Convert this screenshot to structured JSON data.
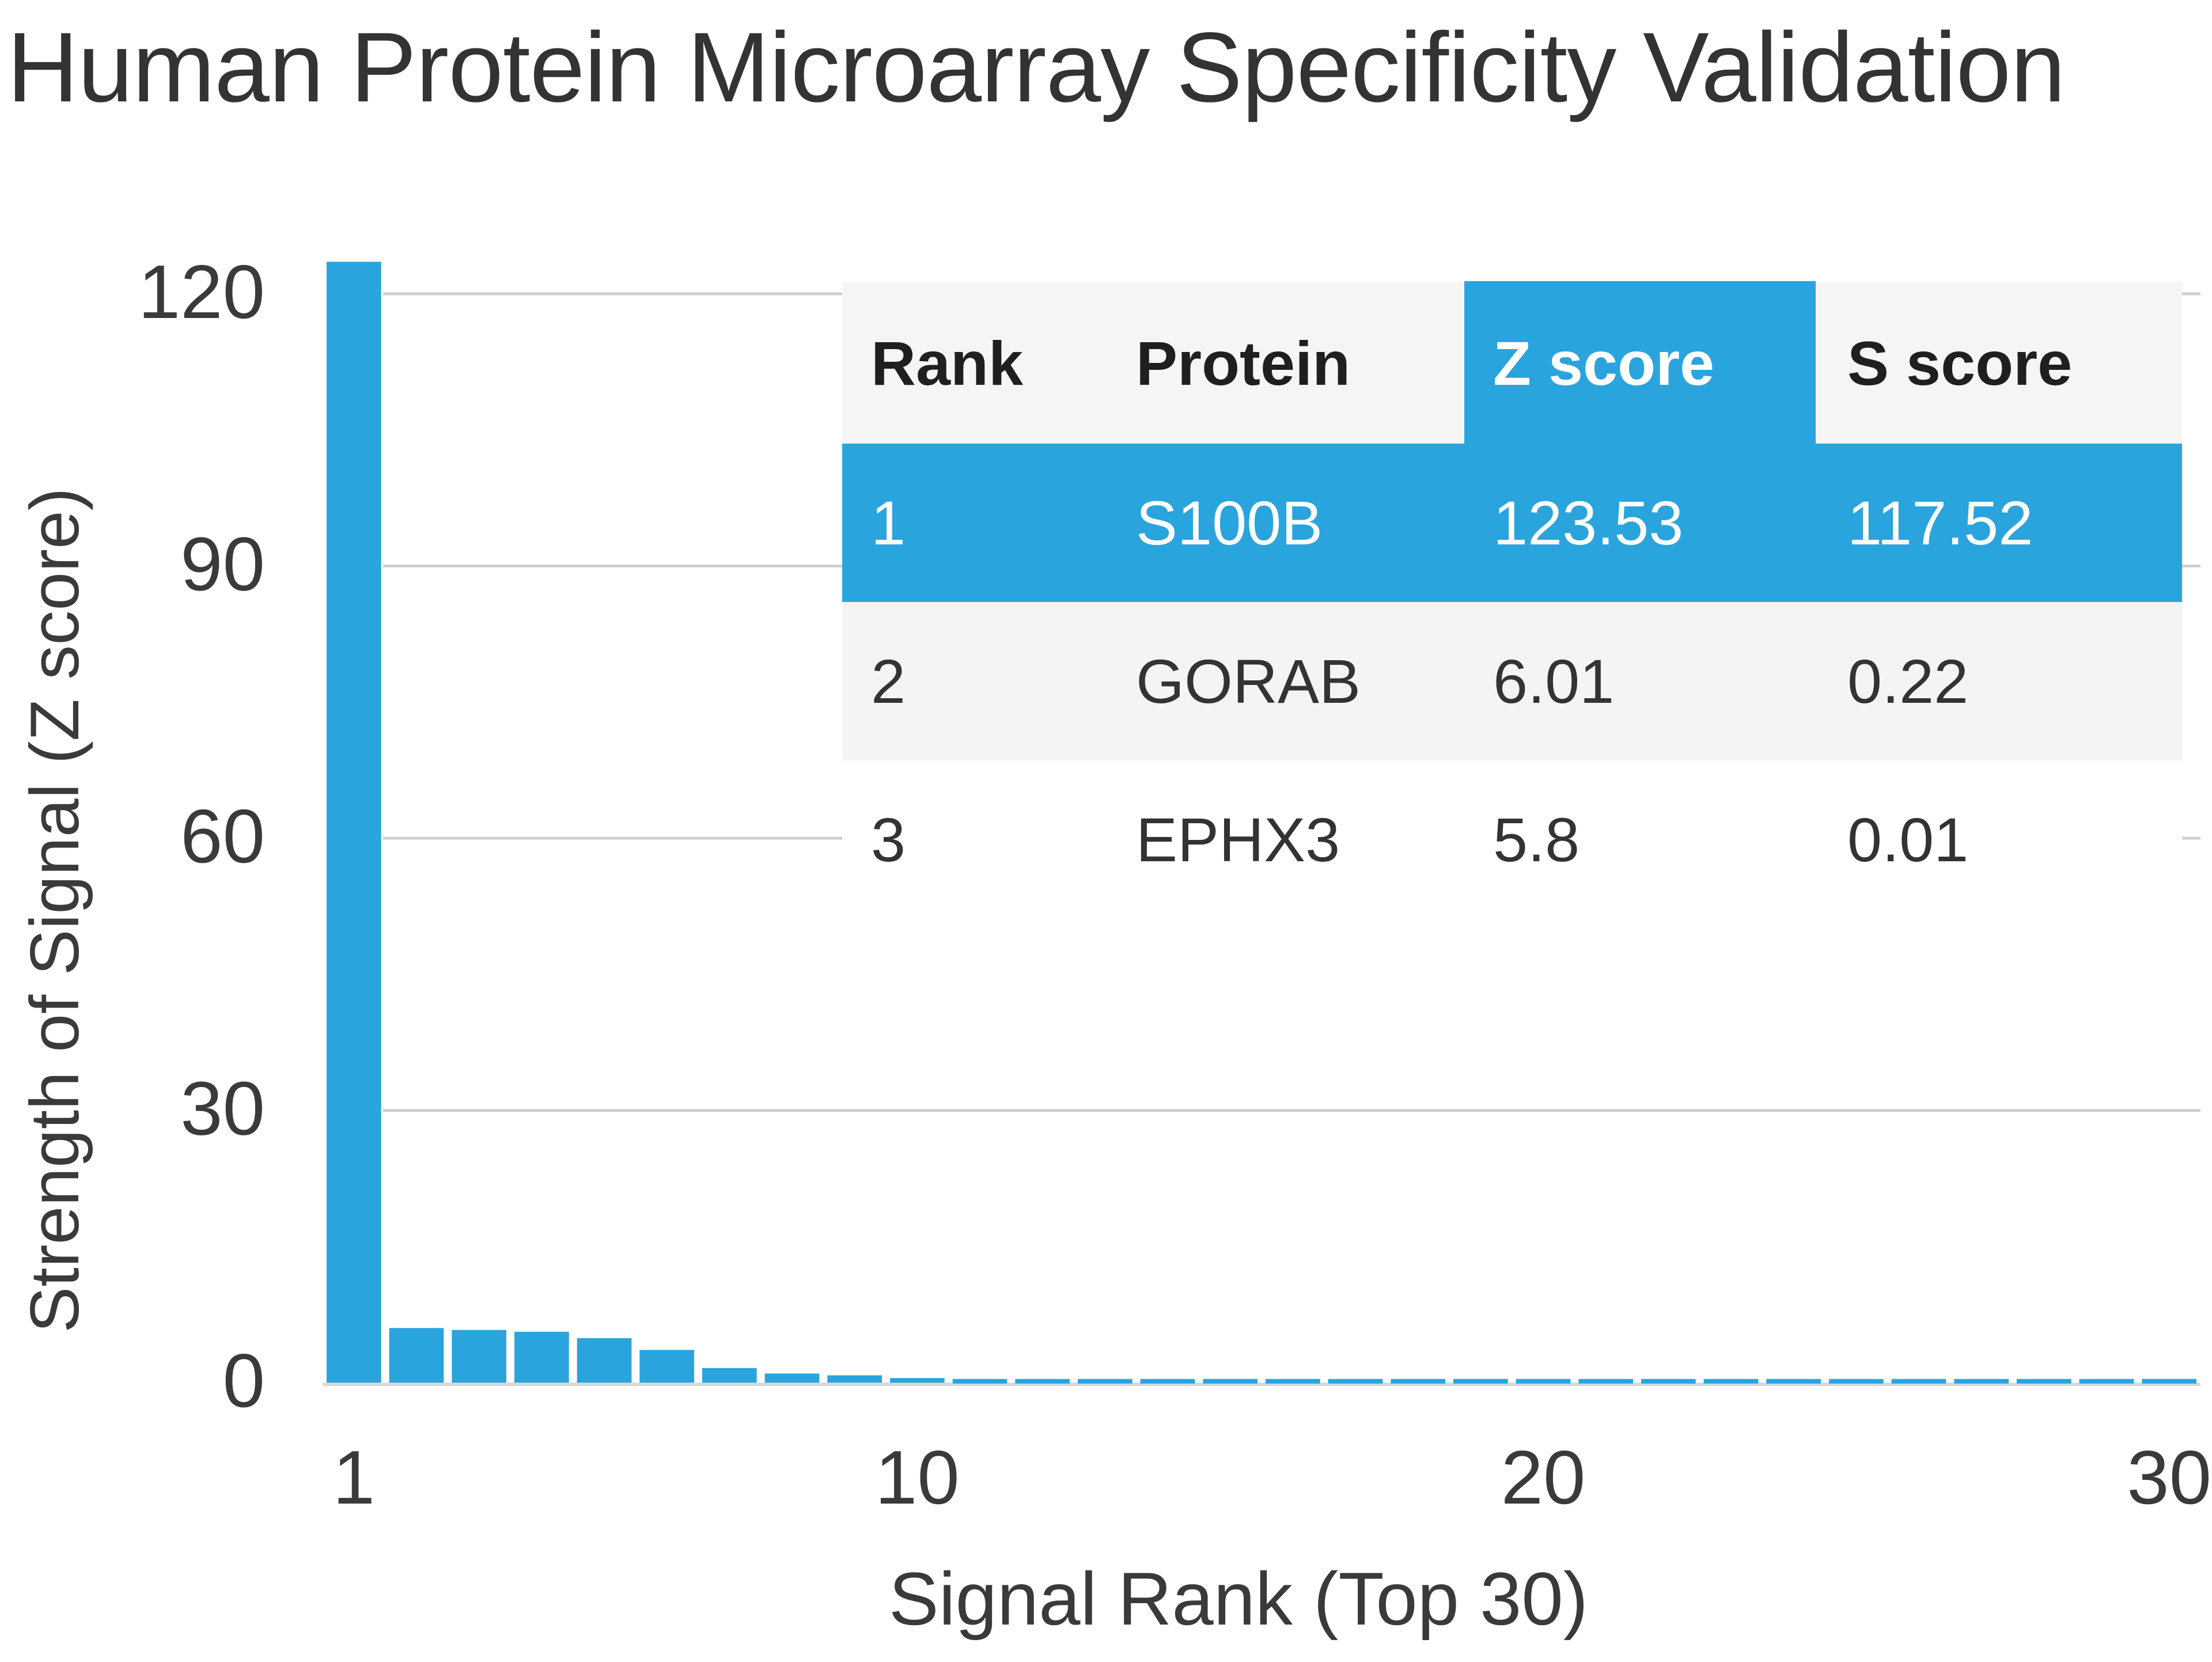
{
  "chart_data": {
    "type": "bar",
    "title": "Human Protein Microarray Specificity Validation",
    "xlabel": "Signal Rank (Top 30)",
    "ylabel": "Strength of Signal (Z score)",
    "ylim": [
      0,
      120
    ],
    "yticks": [
      "0",
      "30",
      "60",
      "90",
      "120"
    ],
    "xticks": [
      "1",
      "10",
      "20",
      "30"
    ],
    "grid": true,
    "bar_color": "#29a4dd",
    "categories": [
      1,
      2,
      3,
      4,
      5,
      6,
      7,
      8,
      9,
      10,
      11,
      12,
      13,
      14,
      15,
      16,
      17,
      18,
      19,
      20,
      21,
      22,
      23,
      24,
      25,
      26,
      27,
      28,
      29,
      30
    ],
    "values": [
      123.53,
      6.01,
      5.8,
      5.6,
      4.9,
      3.6,
      1.6,
      1.0,
      0.8,
      0.5,
      0.4,
      0.4,
      0.4,
      0.4,
      0.4,
      0.4,
      0.4,
      0.4,
      0.4,
      0.4,
      0.4,
      0.4,
      0.4,
      0.4,
      0.4,
      0.4,
      0.4,
      0.4,
      0.4,
      0.4
    ]
  },
  "table": {
    "headers": [
      "Rank",
      "Protein",
      "Z score",
      "S score"
    ],
    "rows": [
      [
        "1",
        "S100B",
        "123.53",
        "117.52"
      ],
      [
        "2",
        "GORAB",
        "6.01",
        "0.22"
      ],
      [
        "3",
        "EPHX3",
        "5.8",
        "0.01"
      ]
    ],
    "highlight_color": "#29a4dd"
  }
}
